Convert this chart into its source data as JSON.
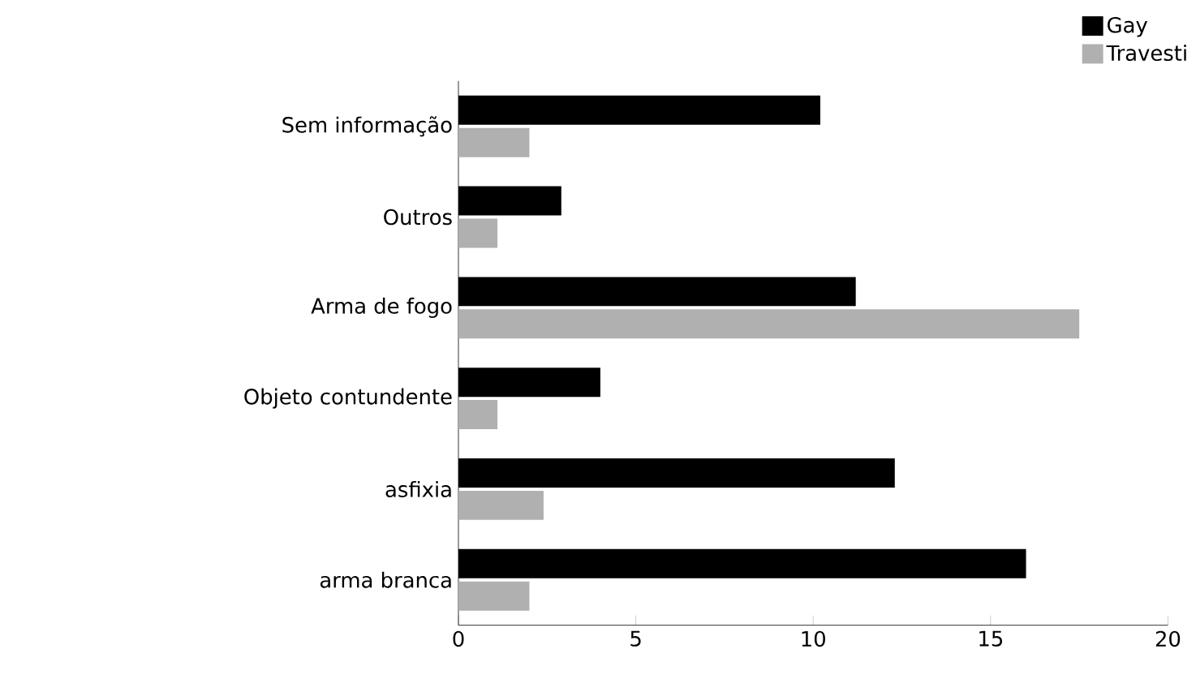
{
  "chart_data": {
    "type": "bar",
    "orientation": "horizontal",
    "categories": [
      "Sem informação",
      "Outros",
      "Arma de fogo",
      "Objeto contundente",
      "asfixia",
      "arma branca"
    ],
    "series": [
      {
        "name": "Gay",
        "color": "#000000",
        "values": [
          10.2,
          2.9,
          11.2,
          4,
          12.3,
          16
        ]
      },
      {
        "name": "Travesti",
        "color": "#b0b0b0",
        "values": [
          2,
          1.1,
          17.5,
          1.1,
          2.4,
          2
        ]
      }
    ],
    "xlim": [
      0,
      20
    ],
    "xticks": [
      0,
      5,
      10,
      15,
      20
    ],
    "legend": "top right",
    "grid": false
  }
}
